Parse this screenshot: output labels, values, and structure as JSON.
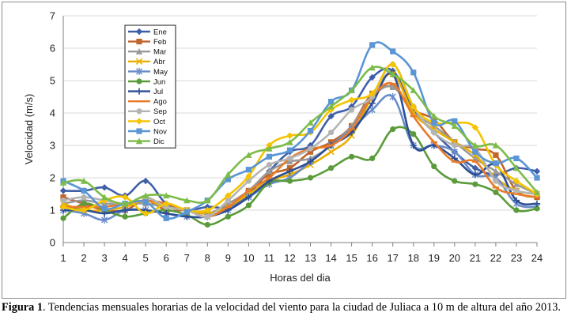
{
  "chart_data": {
    "type": "line",
    "xlabel": "Horas del dia",
    "ylabel": "Velocidad (m/s)",
    "x": [
      1,
      2,
      3,
      4,
      5,
      6,
      7,
      8,
      9,
      10,
      11,
      12,
      13,
      14,
      15,
      16,
      17,
      18,
      19,
      20,
      21,
      22,
      23,
      24
    ],
    "xlim": [
      1,
      24
    ],
    "ylim": [
      0,
      7
    ],
    "yticks": [
      0,
      1,
      2,
      3,
      4,
      5,
      6,
      7
    ],
    "grid": "horizontal",
    "legend_position": "top-left",
    "series": [
      {
        "name": "Ene",
        "color": "#3f5fa8",
        "marker": "diamond",
        "values": [
          1.6,
          1.6,
          1.7,
          1.45,
          1.9,
          1.2,
          1.0,
          1.1,
          1.1,
          1.5,
          2.2,
          2.8,
          3.0,
          3.9,
          4.2,
          5.1,
          5.3,
          4.1,
          3.4,
          2.8,
          2.3,
          2.1,
          2.3,
          2.2
        ]
      },
      {
        "name": "Feb",
        "color": "#c0652b",
        "marker": "square",
        "values": [
          1.4,
          1.2,
          1.0,
          1.0,
          1.3,
          1.0,
          1.0,
          0.9,
          1.1,
          1.6,
          2.1,
          2.3,
          2.8,
          3.1,
          3.6,
          4.6,
          4.8,
          4.1,
          3.8,
          3.1,
          2.9,
          2.7,
          1.6,
          1.4
        ]
      },
      {
        "name": "Mar",
        "color": "#9a9a9a",
        "marker": "triangle",
        "values": [
          1.2,
          1.3,
          1.2,
          1.2,
          1.2,
          1.1,
          1.0,
          0.9,
          1.2,
          1.6,
          2.2,
          2.5,
          2.6,
          3.0,
          3.6,
          4.5,
          4.8,
          4.0,
          3.6,
          3.1,
          2.6,
          2.2,
          1.8,
          1.5
        ]
      },
      {
        "name": "Abr",
        "color": "#e8b000",
        "marker": "x",
        "values": [
          1.2,
          1.0,
          1.0,
          1.1,
          1.3,
          1.1,
          1.0,
          0.9,
          1.1,
          1.5,
          1.9,
          2.1,
          2.4,
          2.8,
          3.3,
          4.5,
          5.2,
          4.0,
          3.5,
          3.1,
          2.7,
          2.0,
          1.6,
          1.5
        ]
      },
      {
        "name": "May",
        "color": "#6a8cc8",
        "marker": "star",
        "values": [
          1.0,
          0.9,
          0.7,
          1.0,
          1.0,
          0.9,
          0.8,
          0.8,
          1.0,
          1.4,
          1.8,
          2.0,
          2.5,
          3.0,
          3.5,
          4.1,
          4.5,
          3.0,
          3.0,
          2.8,
          2.1,
          2.0,
          1.2,
          1.1
        ]
      },
      {
        "name": "Jun",
        "color": "#5a9b3a",
        "marker": "circle",
        "values": [
          0.75,
          1.2,
          1.0,
          0.8,
          0.9,
          1.0,
          0.85,
          0.55,
          0.8,
          1.15,
          1.85,
          1.9,
          2.0,
          2.3,
          2.65,
          2.6,
          3.5,
          3.35,
          2.35,
          1.9,
          1.8,
          1.55,
          1.0,
          1.05
        ]
      },
      {
        "name": "Jul",
        "color": "#2d4f95",
        "marker": "plus",
        "values": [
          1.0,
          1.0,
          0.9,
          1.0,
          1.0,
          0.9,
          0.8,
          0.8,
          1.0,
          1.4,
          1.9,
          2.2,
          2.5,
          3.0,
          3.4,
          4.3,
          5.2,
          3.0,
          3.0,
          2.6,
          2.1,
          2.4,
          1.3,
          1.2
        ]
      },
      {
        "name": "Ago",
        "color": "#e87a28",
        "marker": "dash",
        "values": [
          1.1,
          1.1,
          1.1,
          1.2,
          1.3,
          1.2,
          1.0,
          0.8,
          1.1,
          1.6,
          2.0,
          2.6,
          2.9,
          3.0,
          3.5,
          4.5,
          4.9,
          3.9,
          3.1,
          2.5,
          2.5,
          1.7,
          1.5,
          1.4
        ]
      },
      {
        "name": "Sep",
        "color": "#b4b4b4",
        "marker": "circle",
        "values": [
          1.3,
          1.4,
          1.3,
          1.2,
          1.4,
          1.1,
          1.0,
          0.8,
          1.3,
          1.9,
          2.4,
          2.6,
          2.9,
          3.4,
          4.1,
          4.5,
          5.5,
          4.2,
          3.4,
          3.0,
          2.9,
          1.9,
          1.6,
          1.5
        ]
      },
      {
        "name": "Oct",
        "color": "#f5c400",
        "marker": "diamond",
        "values": [
          1.1,
          1.0,
          1.3,
          1.4,
          0.9,
          1.2,
          1.0,
          1.0,
          1.45,
          2.05,
          3.0,
          3.3,
          3.4,
          4.1,
          4.4,
          4.6,
          5.5,
          4.2,
          3.7,
          3.7,
          3.55,
          2.4,
          1.9,
          1.5
        ]
      },
      {
        "name": "Nov",
        "color": "#5a95d5",
        "marker": "square",
        "values": [
          1.9,
          1.6,
          1.05,
          1.2,
          1.25,
          0.75,
          0.95,
          1.3,
          1.95,
          2.25,
          2.65,
          2.85,
          3.45,
          4.35,
          4.7,
          6.1,
          5.9,
          5.25,
          3.7,
          3.75,
          2.8,
          2.45,
          2.6,
          2.0
        ]
      },
      {
        "name": "Dic",
        "color": "#7cbc48",
        "marker": "triangle",
        "values": [
          1.85,
          1.9,
          1.4,
          1.2,
          1.45,
          1.45,
          1.3,
          1.3,
          2.1,
          2.7,
          2.9,
          3.1,
          3.7,
          4.2,
          4.7,
          5.4,
          5.2,
          4.7,
          3.9,
          3.6,
          3.0,
          3.0,
          2.3,
          1.55
        ]
      }
    ]
  },
  "caption": {
    "label": "Figura 1",
    "text": ". Tendencias mensuales horarias de la velocidad del viento para la ciudad de Juliaca a 10 m de altura del año 2013."
  }
}
